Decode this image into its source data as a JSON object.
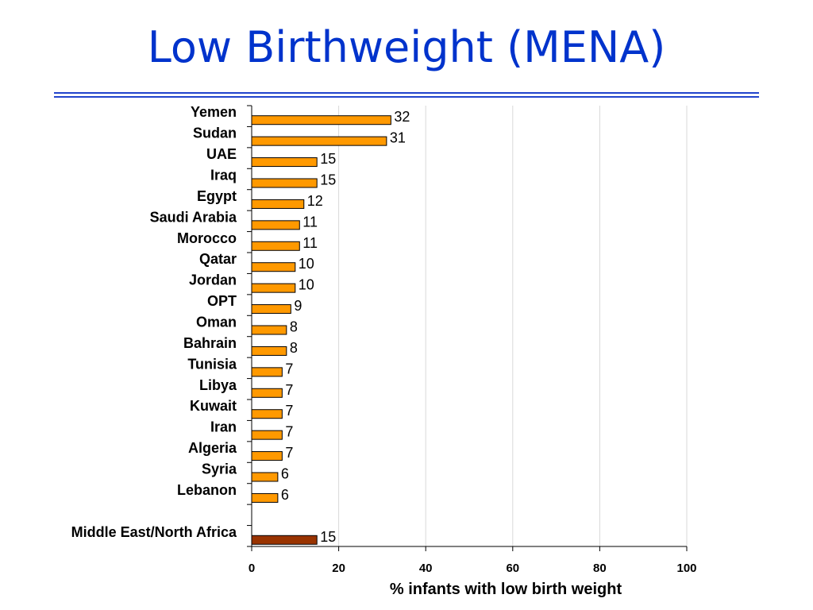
{
  "title": "Low Birthweight (MENA)",
  "colors": {
    "title": "#0033cc",
    "rule": "#2244cc",
    "bar": "#ff9900",
    "bar_highlight": "#993300",
    "bar_stroke": "#000000",
    "grid": "#d9d9d9"
  },
  "chart_data": {
    "type": "bar",
    "orientation": "horizontal",
    "categories": [
      "Yemen",
      "Sudan",
      "UAE",
      "Iraq",
      "Egypt",
      "Saudi Arabia",
      "Morocco",
      "Qatar",
      "Jordan",
      "OPT",
      "Oman",
      "Bahrain",
      "Tunisia",
      "Libya",
      "Kuwait",
      "Iran",
      "Algeria",
      "Syria",
      "Lebanon",
      "",
      "Middle East/North Africa"
    ],
    "values": [
      32,
      31,
      15,
      15,
      12,
      11,
      11,
      10,
      10,
      9,
      8,
      8,
      7,
      7,
      7,
      7,
      7,
      6,
      6,
      null,
      15
    ],
    "value_labels": [
      "32",
      "31",
      "15",
      "15",
      "12",
      "11",
      "11",
      "10",
      "10",
      "9",
      "8",
      "8",
      "7",
      "7",
      "7",
      "7",
      "7",
      "6",
      "6",
      "",
      "15"
    ],
    "highlight": "Middle East/North Africa",
    "xlabel": "% infants with low birth weight",
    "xlim": [
      0,
      100
    ],
    "xticks": [
      0,
      20,
      40,
      60,
      80,
      100
    ],
    "grid": true
  }
}
